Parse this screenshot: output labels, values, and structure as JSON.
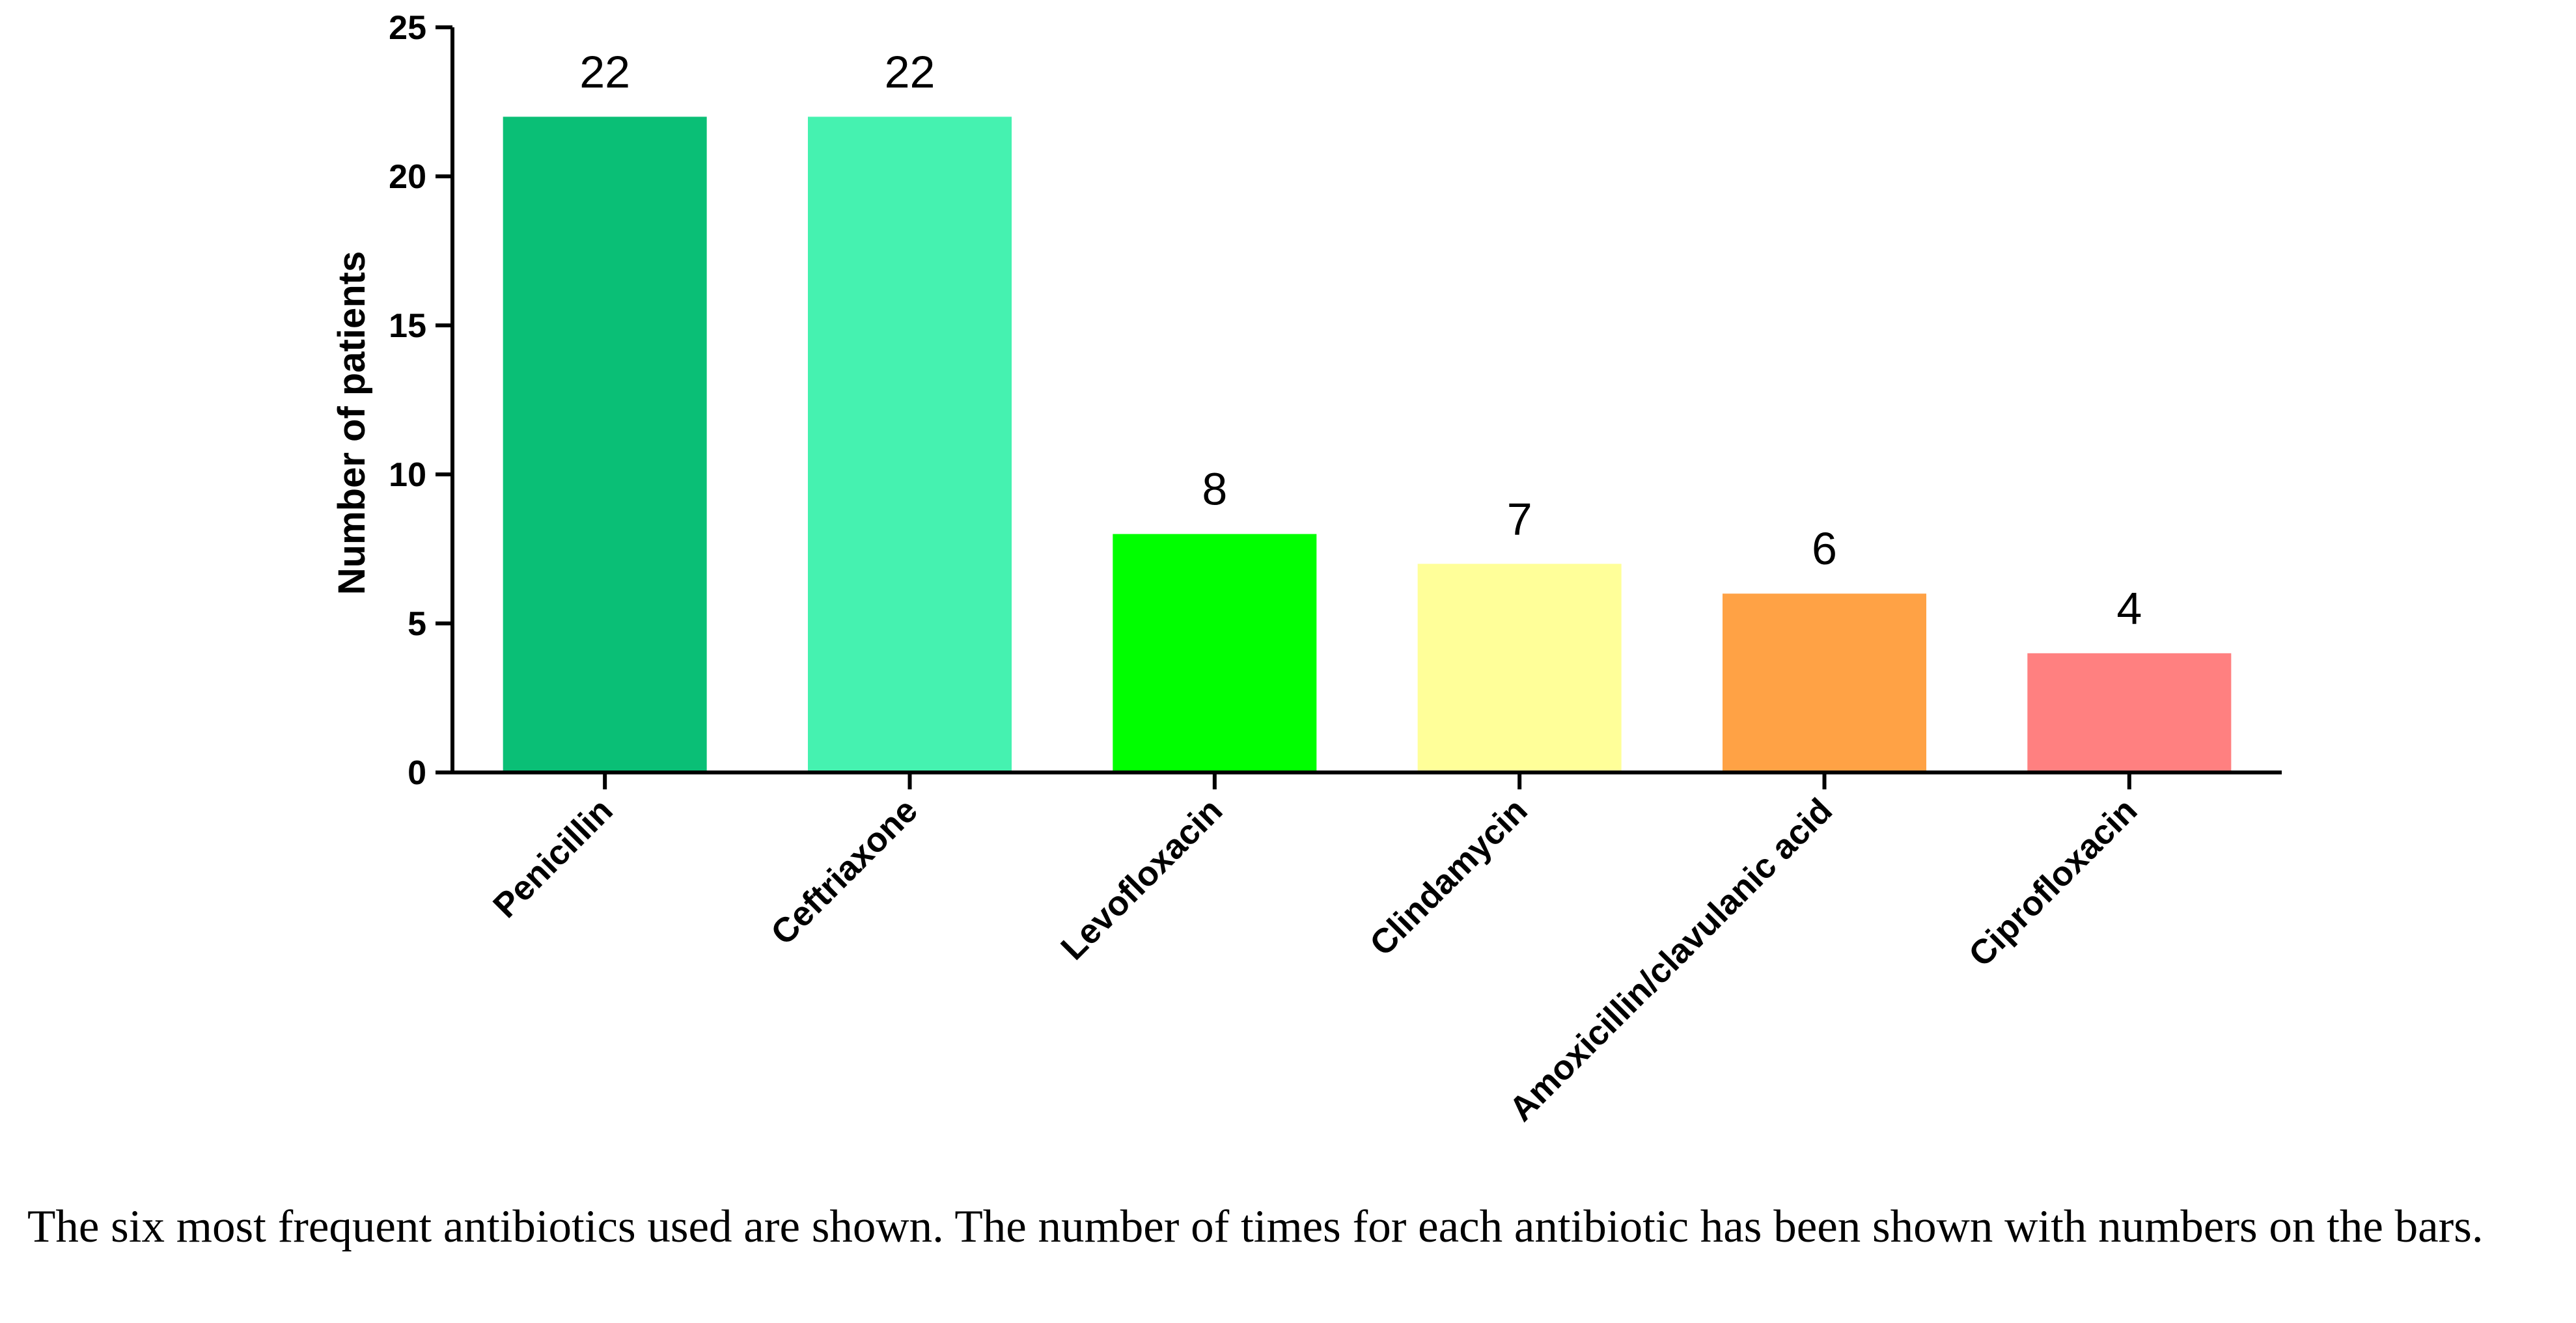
{
  "chart_data": {
    "type": "bar",
    "categories": [
      "Penicillin",
      "Ceftriaxone",
      "Levofloxacin",
      "Clindamycin",
      "Amoxicillin/clavulanic acid",
      "Ciprofloxacin"
    ],
    "values": [
      22,
      22,
      8,
      7,
      6,
      4
    ],
    "data_labels": [
      "22",
      "22",
      "8",
      "7",
      "6",
      "4"
    ],
    "colors": [
      "#0abf76",
      "#45f2b0",
      "#00ff00",
      "#ffff99",
      "#ffa245",
      "#ff8080"
    ],
    "ylabel": "Number of patients",
    "ylim": [
      0,
      25
    ],
    "yticks": [
      0,
      5,
      10,
      15,
      20,
      25
    ],
    "ytick_labels": [
      "0",
      "5",
      "10",
      "15",
      "20",
      "25"
    ],
    "grid": false,
    "legend": "none"
  },
  "caption": "The six most frequent antibiotics used are shown. The number of times for each antibiotic has been shown with numbers on the bars."
}
